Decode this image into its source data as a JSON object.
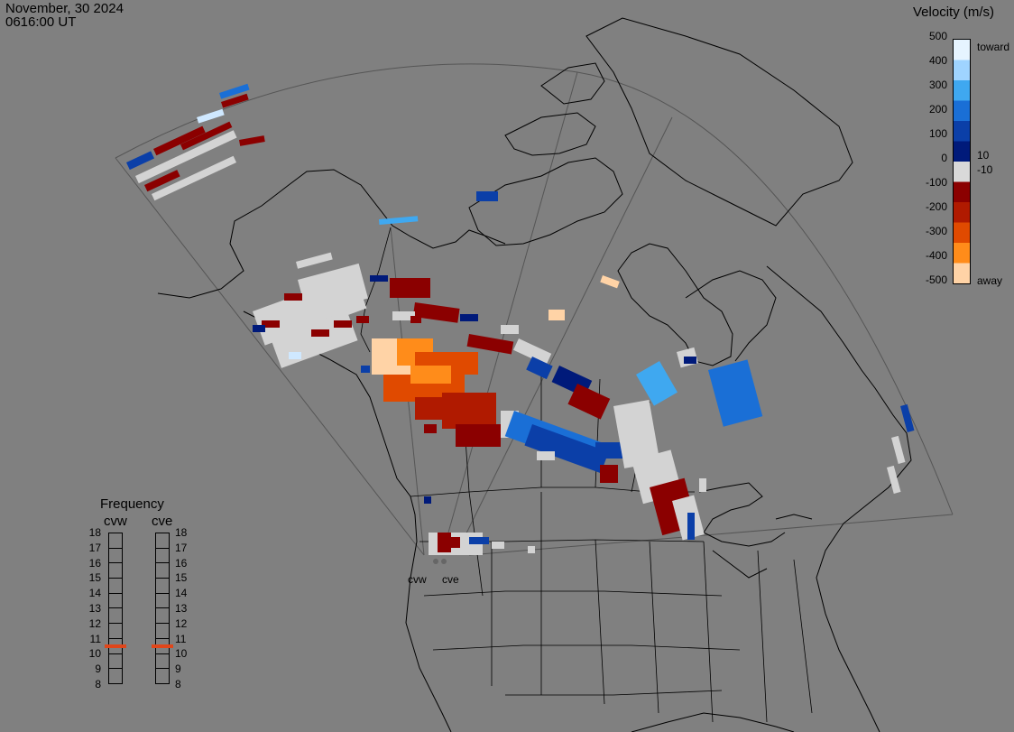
{
  "header": {
    "date": "November, 30 2024",
    "time": "0616:00 UT"
  },
  "colorbar": {
    "title": "Velocity (m/s)",
    "toward_label": "toward",
    "away_label": "away",
    "ticks": [
      "500",
      "400",
      "300",
      "200",
      "100",
      "0",
      "-100",
      "-200",
      "-300",
      "-400",
      "-500"
    ],
    "small_ticks": [
      "10",
      "-10"
    ],
    "colors": [
      "#e6f4ff",
      "#9fd4ff",
      "#3fa8f0",
      "#1a6fd6",
      "#0b3fa8",
      "#001a7a",
      "#d9d9d9",
      "#8b0000",
      "#b01a00",
      "#e04a00",
      "#ff8c1a",
      "#ffd3a6"
    ]
  },
  "frequency": {
    "title": "Frequency",
    "radar_left": "cvw",
    "radar_right": "cve",
    "levels": [
      "18",
      "17",
      "16",
      "15",
      "14",
      "13",
      "12",
      "11",
      "10",
      "9",
      "8"
    ],
    "cvw_mhz": 10.5,
    "cve_mhz": 10.5,
    "marker_color": "#e0461a"
  },
  "radar_sites": {
    "cvw_label": "cvw",
    "cve_label": "cve"
  }
}
